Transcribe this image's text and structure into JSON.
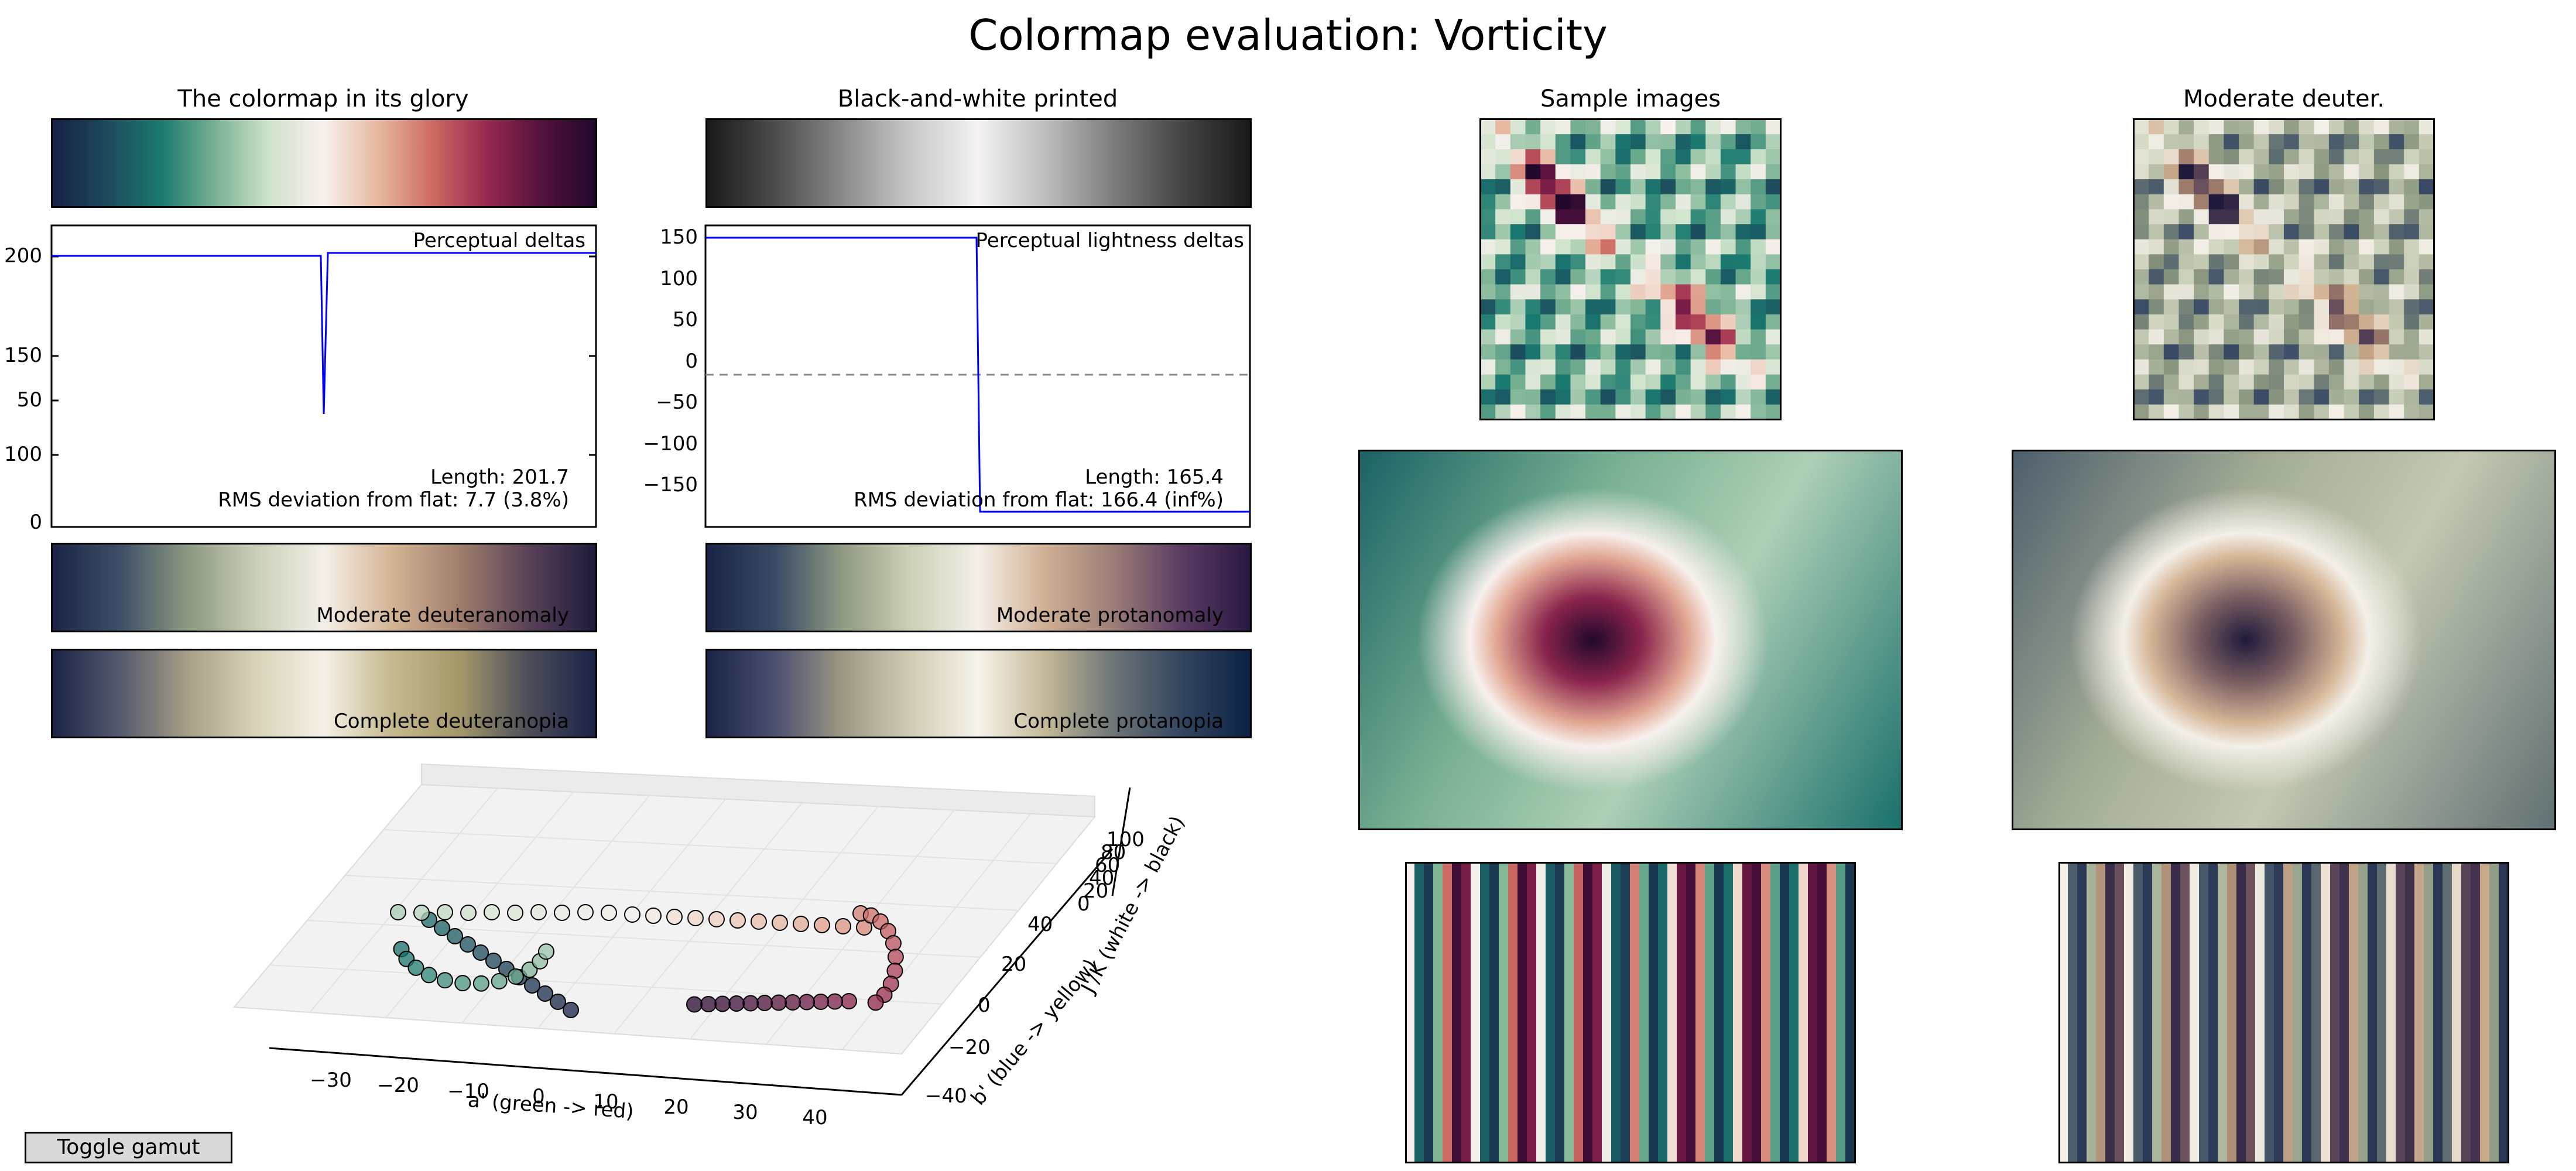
{
  "title": "Colormap evaluation: Vorticity",
  "colors": {
    "stops": [
      "#182145",
      "#1c4a5c",
      "#1a7a70",
      "#79b192",
      "#cfe3cc",
      "#f7f0ec",
      "#e7b7a0",
      "#cd6a63",
      "#98284f",
      "#54123e",
      "#21082c"
    ],
    "grey_stops": [
      "#1a1a1a",
      "#4c4c4c",
      "#8a8a8a",
      "#c8c8c8",
      "#f4f2f2",
      "#bcbcbc",
      "#7c7c7c",
      "#454545",
      "#1a1a1a"
    ],
    "deuter_mod": [
      "#1a2346",
      "#3f5068",
      "#8c9880",
      "#c9cfb8",
      "#f4efe7",
      "#d3b494",
      "#a07e6c",
      "#5a4358",
      "#1f1a3c"
    ],
    "protan_mod": [
      "#1a2346",
      "#3a4b66",
      "#8f9a82",
      "#cdd0b8",
      "#f4efe7",
      "#cfae92",
      "#9a7c76",
      "#5a3c63",
      "#2a1842"
    ],
    "deuter_full": [
      "#1b2446",
      "#555a6e",
      "#a89f86",
      "#d8d3b8",
      "#f5f0e6",
      "#c5b98e",
      "#a4986a",
      "#4e4f5a",
      "#1a2347"
    ],
    "protan_full": [
      "#1a2446",
      "#4b5070",
      "#9d9884",
      "#d1ccb4",
      "#f6f3ea",
      "#c3b795",
      "#6c7477",
      "#33465f",
      "#0c2244"
    ],
    "line_blue": "#0000ff",
    "button_bg": "#d9d9d9"
  },
  "panels": {
    "glory_title": "The colormap in its glory",
    "bw_title": "Black-and-white printed",
    "samples_title": "Sample images",
    "deuter_title": "Moderate deuter."
  },
  "deltas": {
    "label": "Perceptual deltas",
    "length": "Length: 201.7",
    "rms": "RMS deviation from flat: 7.7 (3.8%)",
    "yticks": [
      "200",
      "150",
      "100",
      "50",
      "0"
    ]
  },
  "lightness": {
    "label": "Perceptual lightness deltas",
    "length": "Length: 165.4",
    "rms": "RMS deviation from flat: 166.4 (inf%)",
    "yticks": [
      "150",
      "100",
      "50",
      "0",
      "−50",
      "−100",
      "−150"
    ]
  },
  "cvd": {
    "mod_deuter": "Moderate deuteranomaly",
    "mod_protan": "Moderate protanomaly",
    "full_deuter": "Complete deuteranopia",
    "full_protan": "Complete protanopia"
  },
  "gamut3d": {
    "xlabel": "a' (green -> red)",
    "ylabel": "b' (blue -> yellow)",
    "zlabel": "J'/K (white -> black)",
    "xticks": [
      "−30",
      "−20",
      "−10",
      "0",
      "10",
      "20",
      "30",
      "40"
    ],
    "yticks": [
      "−40",
      "−20",
      "0",
      "20",
      "40"
    ],
    "zticks": [
      "0",
      "20",
      "40",
      "60",
      "80",
      "100"
    ]
  },
  "button": {
    "label": "Toggle gamut"
  }
}
